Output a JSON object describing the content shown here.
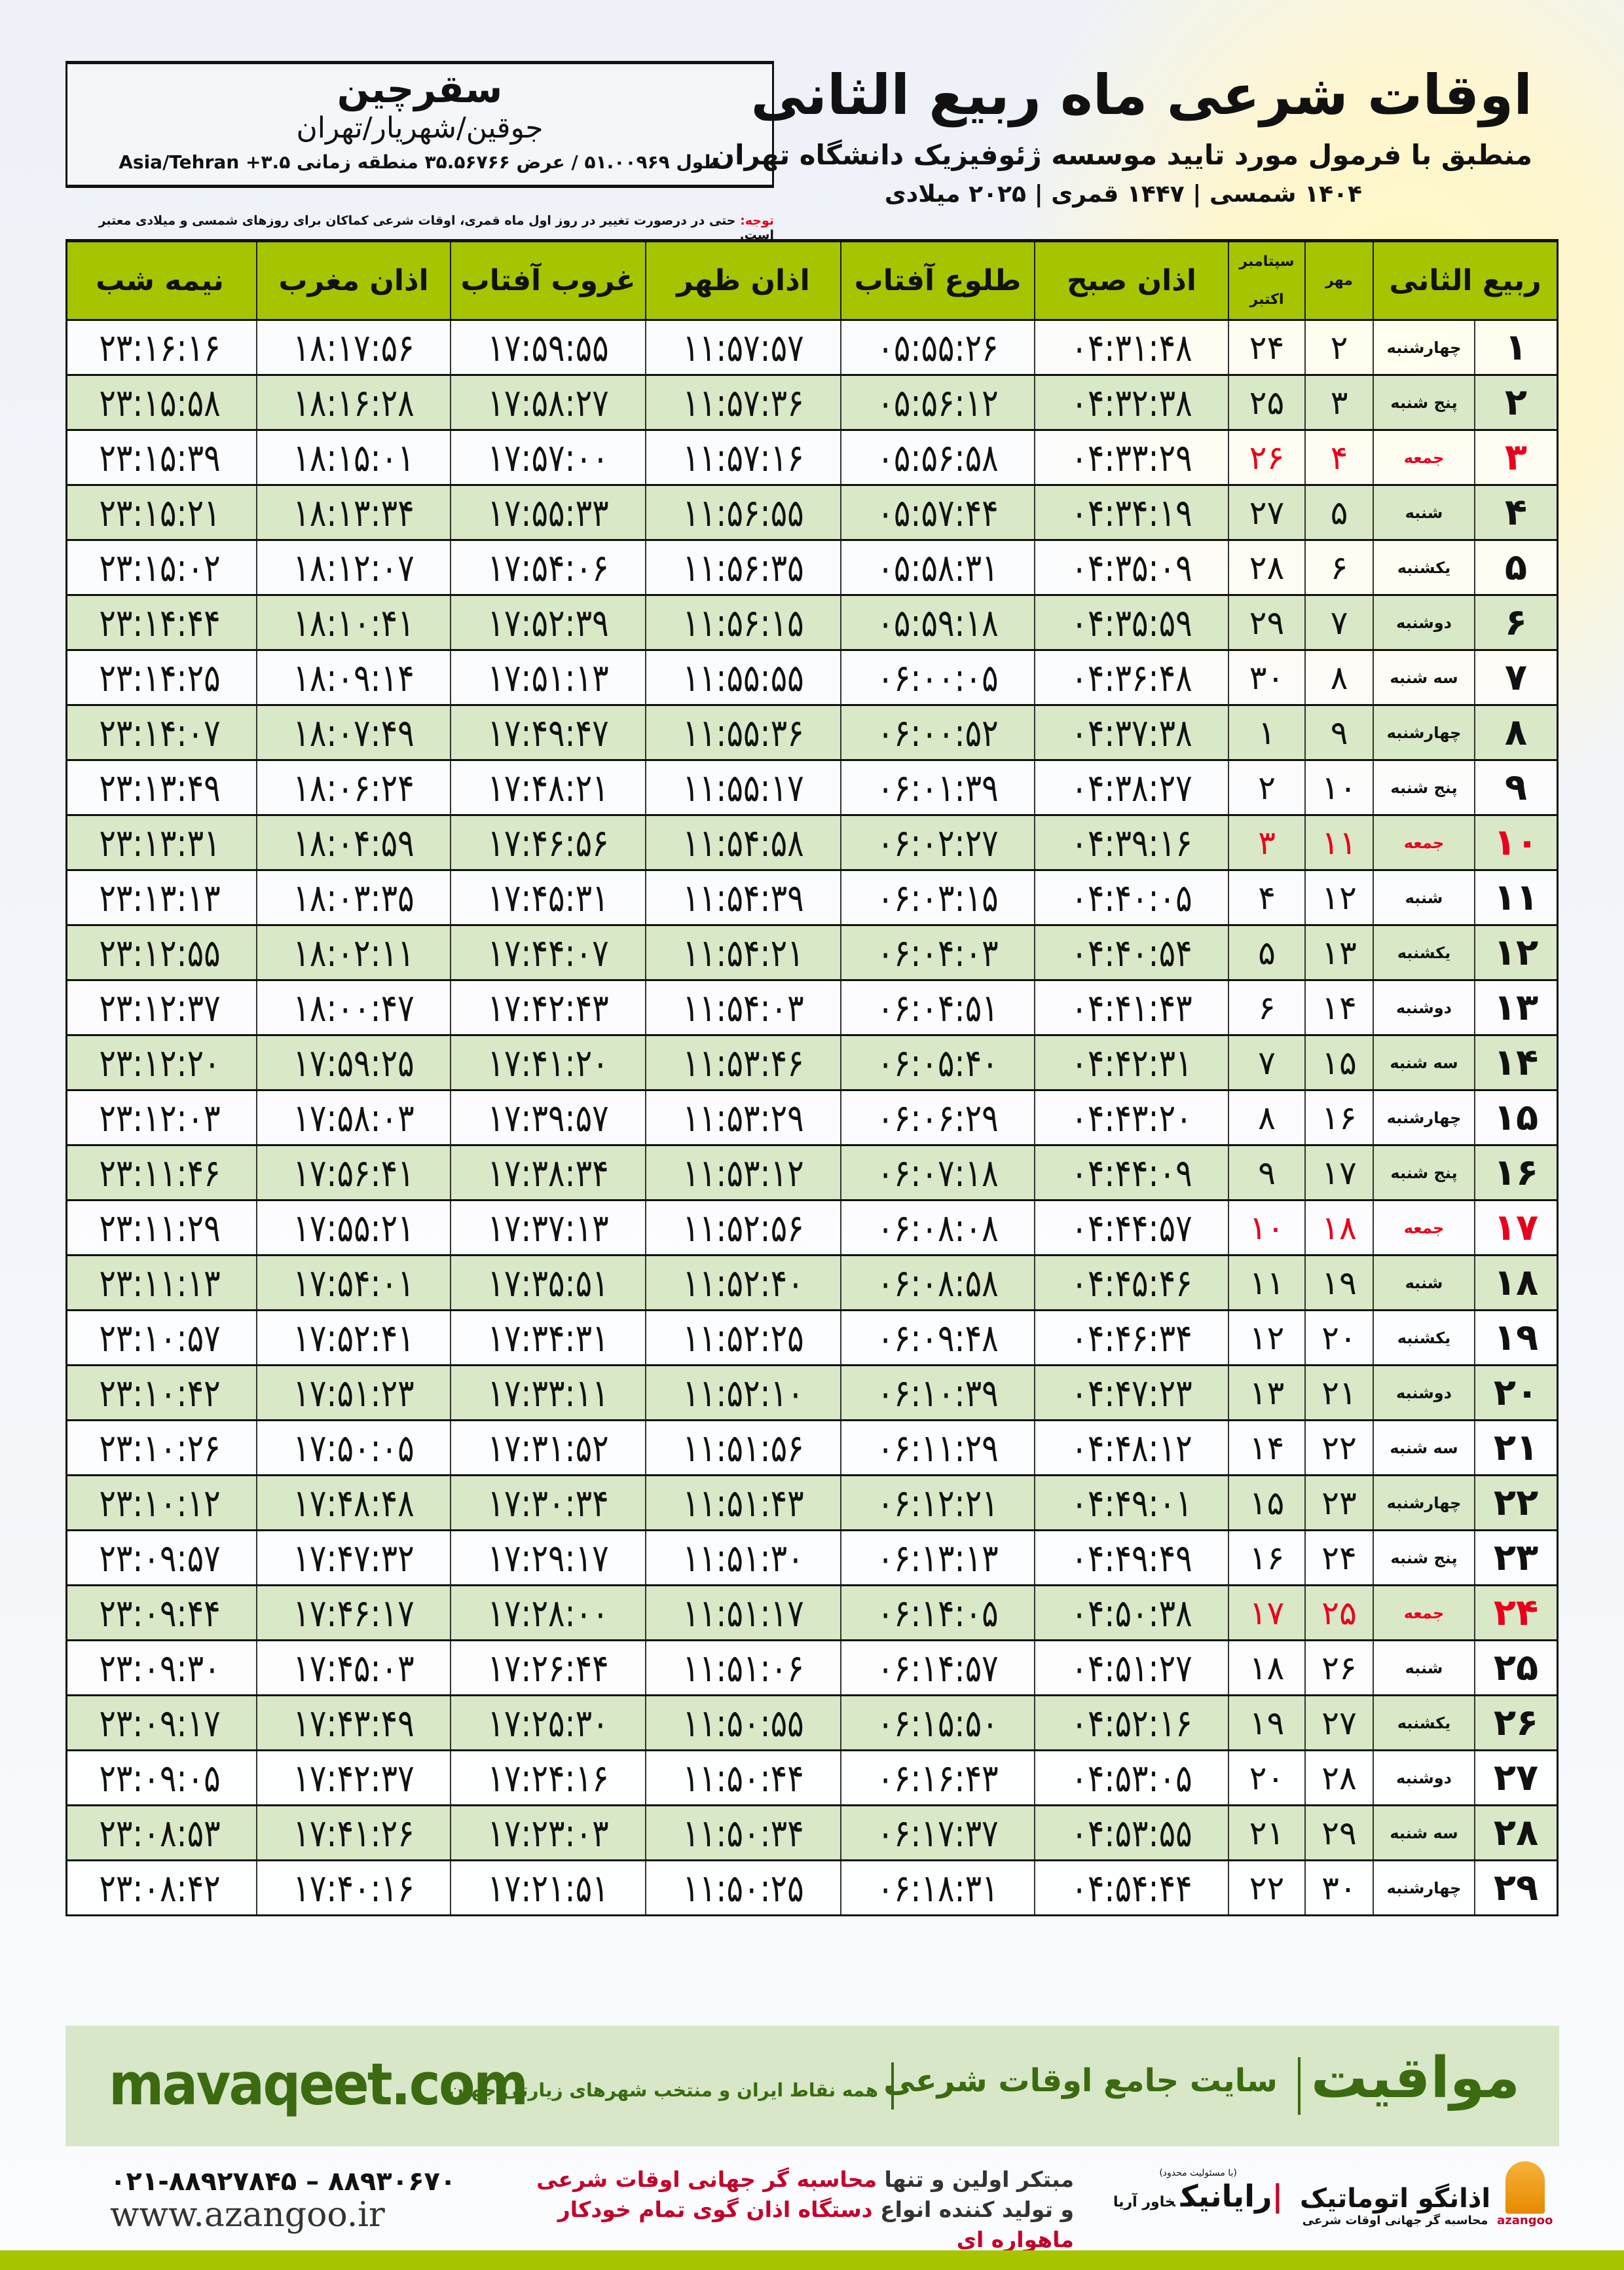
{
  "header": {
    "title": "اوقات شرعی ماه ربیع الثانی",
    "subtitle": "منطبق با فرمول مورد تایید موسسه ژئوفیزیک دانشگاه تهران",
    "date_line": "۱۴۰۴ شمسی | ۱۴۴۷ قمری | ۲۰۲۵ میلادی"
  },
  "location": {
    "city": "سقرچین",
    "region": "جوقین/شهریار/تهران",
    "coords": "طول ۵۱.۰۰۹۶۹ / عرض ۳۵.۵۶۷۶۶ منطقه زمانی ۳.۵+ Asia/Tehran"
  },
  "note": {
    "label": "توجه:",
    "text": " حتی در درصورت تغییر در روز اول ماه قمری، اوقات شرعی کماکان برای روزهای شمسی و میلادی معتبر است."
  },
  "table": {
    "headers": {
      "hijri": "ربیع الثانی",
      "mehr": "مهر",
      "greg_1": "سپتامبر",
      "greg_2": "اکتبر",
      "fajr": "اذان صبح",
      "sunrise": "طلوع آفتاب",
      "dhuhr": "اذان ظهر",
      "sunset": "غروب آفتاب",
      "maghrib": "اذان مغرب",
      "midnight": "نیمه شب"
    },
    "friday_label": "جمعه",
    "friday_color": "#e8001c",
    "header_color": "#a6c500",
    "alt_row_color": "#d9e8c6",
    "rows": [
      [
        "۱",
        "چهارشنبه",
        "۲",
        "۲۴",
        "۰۴:۳۱:۴۸",
        "۰۵:۵۵:۲۶",
        "۱۱:۵۷:۵۷",
        "۱۷:۵۹:۵۵",
        "۱۸:۱۷:۵۶",
        "۲۳:۱۶:۱۶"
      ],
      [
        "۲",
        "پنج شنبه",
        "۳",
        "۲۵",
        "۰۴:۳۲:۳۸",
        "۰۵:۵۶:۱۲",
        "۱۱:۵۷:۳۶",
        "۱۷:۵۸:۲۷",
        "۱۸:۱۶:۲۸",
        "۲۳:۱۵:۵۸"
      ],
      [
        "۳",
        "جمعه",
        "۴",
        "۲۶",
        "۰۴:۳۳:۲۹",
        "۰۵:۵۶:۵۸",
        "۱۱:۵۷:۱۶",
        "۱۷:۵۷:۰۰",
        "۱۸:۱۵:۰۱",
        "۲۳:۱۵:۳۹"
      ],
      [
        "۴",
        "شنبه",
        "۵",
        "۲۷",
        "۰۴:۳۴:۱۹",
        "۰۵:۵۷:۴۴",
        "۱۱:۵۶:۵۵",
        "۱۷:۵۵:۳۳",
        "۱۸:۱۳:۳۴",
        "۲۳:۱۵:۲۱"
      ],
      [
        "۵",
        "یکشنبه",
        "۶",
        "۲۸",
        "۰۴:۳۵:۰۹",
        "۰۵:۵۸:۳۱",
        "۱۱:۵۶:۳۵",
        "۱۷:۵۴:۰۶",
        "۱۸:۱۲:۰۷",
        "۲۳:۱۵:۰۲"
      ],
      [
        "۶",
        "دوشنبه",
        "۷",
        "۲۹",
        "۰۴:۳۵:۵۹",
        "۰۵:۵۹:۱۸",
        "۱۱:۵۶:۱۵",
        "۱۷:۵۲:۳۹",
        "۱۸:۱۰:۴۱",
        "۲۳:۱۴:۴۴"
      ],
      [
        "۷",
        "سه شنبه",
        "۸",
        "۳۰",
        "۰۴:۳۶:۴۸",
        "۰۶:۰۰:۰۵",
        "۱۱:۵۵:۵۵",
        "۱۷:۵۱:۱۳",
        "۱۸:۰۹:۱۴",
        "۲۳:۱۴:۲۵"
      ],
      [
        "۸",
        "چهارشنبه",
        "۹",
        "۱",
        "۰۴:۳۷:۳۸",
        "۰۶:۰۰:۵۲",
        "۱۱:۵۵:۳۶",
        "۱۷:۴۹:۴۷",
        "۱۸:۰۷:۴۹",
        "۲۳:۱۴:۰۷"
      ],
      [
        "۹",
        "پنج شنبه",
        "۱۰",
        "۲",
        "۰۴:۳۸:۲۷",
        "۰۶:۰۱:۳۹",
        "۱۱:۵۵:۱۷",
        "۱۷:۴۸:۲۱",
        "۱۸:۰۶:۲۴",
        "۲۳:۱۳:۴۹"
      ],
      [
        "۱۰",
        "جمعه",
        "۱۱",
        "۳",
        "۰۴:۳۹:۱۶",
        "۰۶:۰۲:۲۷",
        "۱۱:۵۴:۵۸",
        "۱۷:۴۶:۵۶",
        "۱۸:۰۴:۵۹",
        "۲۳:۱۳:۳۱"
      ],
      [
        "۱۱",
        "شنبه",
        "۱۲",
        "۴",
        "۰۴:۴۰:۰۵",
        "۰۶:۰۳:۱۵",
        "۱۱:۵۴:۳۹",
        "۱۷:۴۵:۳۱",
        "۱۸:۰۳:۳۵",
        "۲۳:۱۳:۱۳"
      ],
      [
        "۱۲",
        "یکشنبه",
        "۱۳",
        "۵",
        "۰۴:۴۰:۵۴",
        "۰۶:۰۴:۰۳",
        "۱۱:۵۴:۲۱",
        "۱۷:۴۴:۰۷",
        "۱۸:۰۲:۱۱",
        "۲۳:۱۲:۵۵"
      ],
      [
        "۱۳",
        "دوشنبه",
        "۱۴",
        "۶",
        "۰۴:۴۱:۴۳",
        "۰۶:۰۴:۵۱",
        "۱۱:۵۴:۰۳",
        "۱۷:۴۲:۴۳",
        "۱۸:۰۰:۴۷",
        "۲۳:۱۲:۳۷"
      ],
      [
        "۱۴",
        "سه شنبه",
        "۱۵",
        "۷",
        "۰۴:۴۲:۳۱",
        "۰۶:۰۵:۴۰",
        "۱۱:۵۳:۴۶",
        "۱۷:۴۱:۲۰",
        "۱۷:۵۹:۲۵",
        "۲۳:۱۲:۲۰"
      ],
      [
        "۱۵",
        "چهارشنبه",
        "۱۶",
        "۸",
        "۰۴:۴۳:۲۰",
        "۰۶:۰۶:۲۹",
        "۱۱:۵۳:۲۹",
        "۱۷:۳۹:۵۷",
        "۱۷:۵۸:۰۳",
        "۲۳:۱۲:۰۳"
      ],
      [
        "۱۶",
        "پنج شنبه",
        "۱۷",
        "۹",
        "۰۴:۴۴:۰۹",
        "۰۶:۰۷:۱۸",
        "۱۱:۵۳:۱۲",
        "۱۷:۳۸:۳۴",
        "۱۷:۵۶:۴۱",
        "۲۳:۱۱:۴۶"
      ],
      [
        "۱۷",
        "جمعه",
        "۱۸",
        "۱۰",
        "۰۴:۴۴:۵۷",
        "۰۶:۰۸:۰۸",
        "۱۱:۵۲:۵۶",
        "۱۷:۳۷:۱۳",
        "۱۷:۵۵:۲۱",
        "۲۳:۱۱:۲۹"
      ],
      [
        "۱۸",
        "شنبه",
        "۱۹",
        "۱۱",
        "۰۴:۴۵:۴۶",
        "۰۶:۰۸:۵۸",
        "۱۱:۵۲:۴۰",
        "۱۷:۳۵:۵۱",
        "۱۷:۵۴:۰۱",
        "۲۳:۱۱:۱۳"
      ],
      [
        "۱۹",
        "یکشنبه",
        "۲۰",
        "۱۲",
        "۰۴:۴۶:۳۴",
        "۰۶:۰۹:۴۸",
        "۱۱:۵۲:۲۵",
        "۱۷:۳۴:۳۱",
        "۱۷:۵۲:۴۱",
        "۲۳:۱۰:۵۷"
      ],
      [
        "۲۰",
        "دوشنبه",
        "۲۱",
        "۱۳",
        "۰۴:۴۷:۲۳",
        "۰۶:۱۰:۳۹",
        "۱۱:۵۲:۱۰",
        "۱۷:۳۳:۱۱",
        "۱۷:۵۱:۲۳",
        "۲۳:۱۰:۴۲"
      ],
      [
        "۲۱",
        "سه شنبه",
        "۲۲",
        "۱۴",
        "۰۴:۴۸:۱۲",
        "۰۶:۱۱:۲۹",
        "۱۱:۵۱:۵۶",
        "۱۷:۳۱:۵۲",
        "۱۷:۵۰:۰۵",
        "۲۳:۱۰:۲۶"
      ],
      [
        "۲۲",
        "چهارشنبه",
        "۲۳",
        "۱۵",
        "۰۴:۴۹:۰۱",
        "۰۶:۱۲:۲۱",
        "۱۱:۵۱:۴۳",
        "۱۷:۳۰:۳۴",
        "۱۷:۴۸:۴۸",
        "۲۳:۱۰:۱۲"
      ],
      [
        "۲۳",
        "پنج شنبه",
        "۲۴",
        "۱۶",
        "۰۴:۴۹:۴۹",
        "۰۶:۱۳:۱۳",
        "۱۱:۵۱:۳۰",
        "۱۷:۲۹:۱۷",
        "۱۷:۴۷:۳۲",
        "۲۳:۰۹:۵۷"
      ],
      [
        "۲۴",
        "جمعه",
        "۲۵",
        "۱۷",
        "۰۴:۵۰:۳۸",
        "۰۶:۱۴:۰۵",
        "۱۱:۵۱:۱۷",
        "۱۷:۲۸:۰۰",
        "۱۷:۴۶:۱۷",
        "۲۳:۰۹:۴۴"
      ],
      [
        "۲۵",
        "شنبه",
        "۲۶",
        "۱۸",
        "۰۴:۵۱:۲۷",
        "۰۶:۱۴:۵۷",
        "۱۱:۵۱:۰۶",
        "۱۷:۲۶:۴۴",
        "۱۷:۴۵:۰۳",
        "۲۳:۰۹:۳۰"
      ],
      [
        "۲۶",
        "یکشنبه",
        "۲۷",
        "۱۹",
        "۰۴:۵۲:۱۶",
        "۰۶:۱۵:۵۰",
        "۱۱:۵۰:۵۵",
        "۱۷:۲۵:۳۰",
        "۱۷:۴۳:۴۹",
        "۲۳:۰۹:۱۷"
      ],
      [
        "۲۷",
        "دوشنبه",
        "۲۸",
        "۲۰",
        "۰۴:۵۳:۰۵",
        "۰۶:۱۶:۴۳",
        "۱۱:۵۰:۴۴",
        "۱۷:۲۴:۱۶",
        "۱۷:۴۲:۳۷",
        "۲۳:۰۹:۰۵"
      ],
      [
        "۲۸",
        "سه شنبه",
        "۲۹",
        "۲۱",
        "۰۴:۵۳:۵۵",
        "۰۶:۱۷:۳۷",
        "۱۱:۵۰:۳۴",
        "۱۷:۲۳:۰۳",
        "۱۷:۴۱:۲۶",
        "۲۳:۰۸:۵۳"
      ],
      [
        "۲۹",
        "چهارشنبه",
        "۳۰",
        "۲۲",
        "۰۴:۵۴:۴۴",
        "۰۶:۱۸:۳۱",
        "۱۱:۵۰:۲۵",
        "۱۷:۲۱:۵۱",
        "۱۷:۴۰:۱۶",
        "۲۳:۰۸:۴۲"
      ]
    ]
  },
  "footer": {
    "site": "mavaqeet.com",
    "brand": "مواقیت",
    "tagline": "سایت جامع اوقات شرعی",
    "description": "همه نقاط ایران و منتخب شهرهای زیارتی جهان",
    "brand_color": "#3b6a10",
    "band_color": "#d7e7c7",
    "phone": "۰۲۱-۸۸۹۲۷۸۴۵ – ۸۸۹۳۰۶۷۰",
    "website": "www.azangoo.ir",
    "promo_line1_a": "مبتکر اولین و تنها ",
    "promo_line1_b": "محاسبه گر جهانی اوقات شرعی",
    "promo_line2_a": "و تولید کننده انواع ",
    "promo_line2_b": "دستگاه اذان گوی تمام خودکار ماهواره ای",
    "rayanik_note": "(با مسئولیت محدود)",
    "rayanik_name": "رایانیک",
    "rayanik_sub": "خاور آریا",
    "azangoo_name": "اذانگو اتوماتیک",
    "azangoo_sub": "محاسبه گر جهانی اوقات شرعی",
    "azangoo_en": "azangoo"
  }
}
